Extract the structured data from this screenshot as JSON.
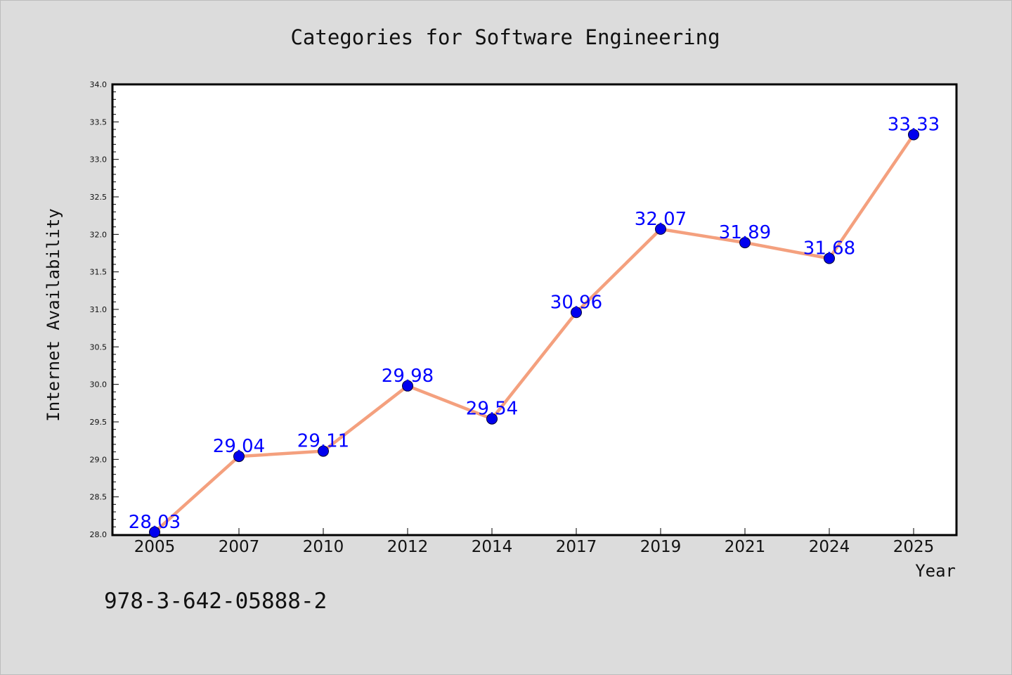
{
  "chart_data": {
    "type": "line",
    "title": "Categories for Software Engineering",
    "xlabel": "Year",
    "ylabel": "Internet Availability",
    "categories": [
      "2005",
      "2007",
      "2010",
      "2012",
      "2014",
      "2017",
      "2019",
      "2021",
      "2024",
      "2025"
    ],
    "series": [
      {
        "values": [
          28.03,
          29.04,
          29.11,
          29.98,
          29.54,
          30.96,
          32.07,
          31.89,
          31.68,
          33.33
        ]
      }
    ],
    "labels": [
      "28.03",
      "29.04",
      "29.11",
      "29.98",
      "29.54",
      "30.96",
      "32.07",
      "31.89",
      "31.68",
      "33.33"
    ],
    "ylim": [
      28.0,
      34.0
    ],
    "yticks": [
      "28.0",
      "28.5",
      "29.0",
      "29.5",
      "30.0",
      "30.5",
      "31.0",
      "31.5",
      "32.0",
      "32.5",
      "33.0",
      "33.5",
      "34.0"
    ],
    "grid": false,
    "line_color": "#f4a07e",
    "marker_color": "#0000ee",
    "label_color": "#0000ff",
    "plot_background": "#ffffff",
    "figure_background": "#dcdcdc"
  },
  "footer_text": "978-3-642-05888-2"
}
